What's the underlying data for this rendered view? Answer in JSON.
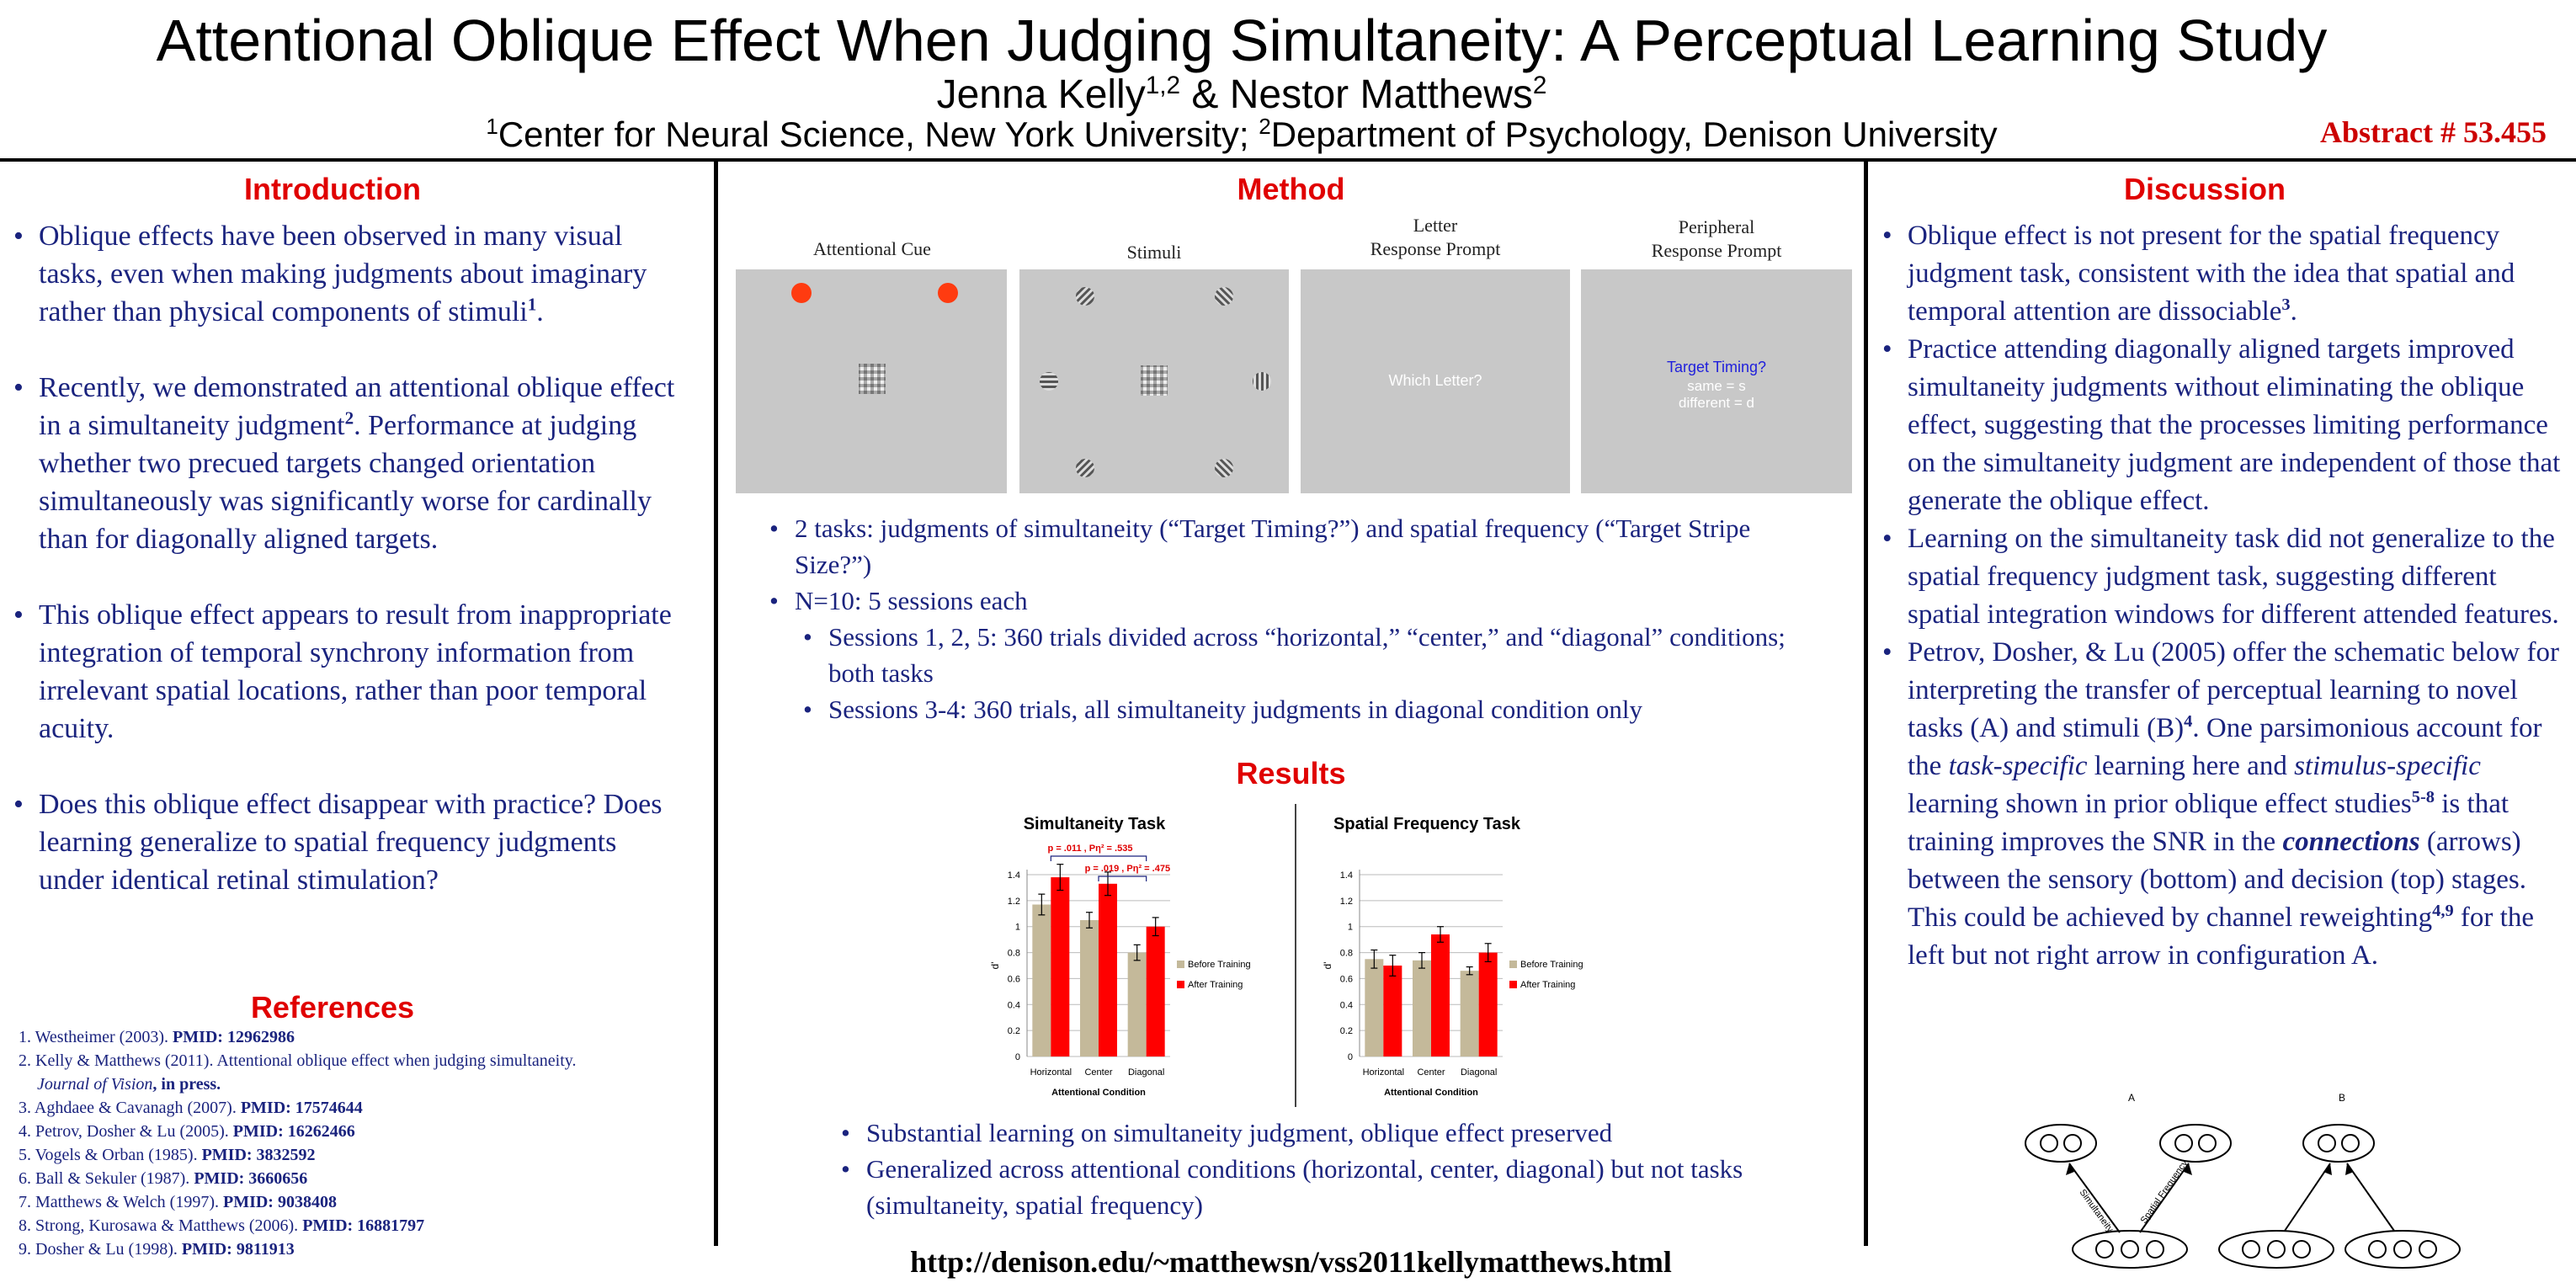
{
  "header": {
    "title": "Attentional Oblique Effect When Judging Simultaneity: A Perceptual Learning Study",
    "author1": "Jenna Kelly",
    "author1_sup": "1,2",
    "author_join": " & Nestor Matthews",
    "author2_sup": "2",
    "affil1_sup": "1",
    "affil1": "Center for Neural Science, New York University; ",
    "affil2_sup": "2",
    "affil2": "Department of Psychology, Denison University",
    "abstract": "Abstract # 53.455"
  },
  "intro": {
    "title": "Introduction",
    "items": [
      {
        "text": "Oblique effects have been observed in many visual tasks, even when making judgments about imaginary rather than physical components of stimuli",
        "sup": "1",
        "tail": "."
      },
      {
        "text": "Recently, we demonstrated an attentional oblique effect in a simultaneity judgment",
        "sup": "2",
        "tail": ".  Performance at judging whether two precued targets changed orientation simultaneously was significantly worse for cardinally than for diagonally aligned targets."
      },
      {
        "text": "This oblique effect appears to result from inappropriate integration of temporal synchrony information from irrelevant spatial locations, rather than poor temporal acuity.",
        "sup": "",
        "tail": ""
      },
      {
        "text": "Does this oblique effect disappear with practice? Does learning generalize to spatial frequency judgments under identical retinal stimulation?",
        "sup": "",
        "tail": ""
      }
    ]
  },
  "refs": {
    "title": "References",
    "items": [
      {
        "text": "1. Westheimer (2003). ",
        "pmid": "PMID: 12962986",
        "extra": ""
      },
      {
        "text": "2. Kelly & Matthews (2011). Attentional oblique effect when judging simultaneity. ",
        "pmid": "",
        "extra": "Journal of Vision",
        "tail": ", in press."
      },
      {
        "text": "3. Aghdaee & Cavanagh (2007). ",
        "pmid": "PMID: 17574644",
        "extra": ""
      },
      {
        "text": "4. Petrov, Dosher & Lu (2005). ",
        "pmid": "PMID: 16262466",
        "extra": ""
      },
      {
        "text": "5. Vogels & Orban (1985). ",
        "pmid": "PMID: 3832592",
        "extra": ""
      },
      {
        "text": "6. Ball & Sekuler (1987). ",
        "pmid": "PMID: 3660656",
        "extra": ""
      },
      {
        "text": "7. Matthews & Welch (1997). ",
        "pmid": "PMID: 9038408",
        "extra": ""
      },
      {
        "text": "8. Strong, Kurosawa & Matthews (2006). ",
        "pmid": "PMID: 16881797",
        "extra": ""
      },
      {
        "text": "9. Dosher & Lu (1998). ",
        "pmid": "PMID: 9811913",
        "extra": ""
      }
    ]
  },
  "method": {
    "title": "Method",
    "panels": [
      {
        "label": "Attentional Cue"
      },
      {
        "label": "Stimuli"
      },
      {
        "label": "Letter\nResponse Prompt",
        "screen_text": "Which Letter?"
      },
      {
        "label": "Peripheral\nResponse Prompt",
        "screen_text": "Target Timing?",
        "screen_sub1": "same = s",
        "screen_sub2": "different = d"
      }
    ],
    "bullets": [
      "2 tasks: judgments of simultaneity (“Target Timing?”) and spatial frequency (“Target Stripe Size?”)",
      "N=10:  5 sessions each"
    ],
    "sub_bullets": [
      "Sessions 1, 2, 5: 360 trials divided across “horizontal,” “center,” and “diagonal” conditions; both tasks",
      "Sessions 3-4: 360 trials, all simultaneity judgments in diagonal condition only"
    ]
  },
  "results": {
    "title": "Results",
    "bullets": [
      "Substantial learning on simultaneity judgment, oblique effect preserved",
      "Generalized across attentional conditions (horizontal, center, diagonal) but not tasks (simultaneity, spatial frequency)"
    ]
  },
  "chart_data": [
    {
      "type": "bar",
      "title": "Simultaneity Task",
      "xlabel": "Attentional Condition",
      "ylabel": "d'",
      "ylim": [
        0,
        1.4
      ],
      "yticks": [
        "0",
        "0.2",
        "0.4",
        "0.6",
        "0.8",
        "1",
        "1.2",
        "1.4"
      ],
      "categories": [
        "Horizontal",
        "Center",
        "Diagonal"
      ],
      "series": [
        {
          "name": "Before Training",
          "color": "#c4b99a",
          "values": [
            1.17,
            1.05,
            0.8
          ],
          "err": [
            0.08,
            0.06,
            0.06
          ]
        },
        {
          "name": "After Training",
          "color": "#ff0000",
          "values": [
            1.38,
            1.33,
            1.0
          ],
          "err": [
            0.1,
            0.09,
            0.07
          ]
        }
      ],
      "annotations": [
        "p = .011 , Pη² = .535",
        "p = .019 , Pη² = .475"
      ]
    },
    {
      "type": "bar",
      "title": "Spatial Frequency Task",
      "xlabel": "Attentional Condition",
      "ylabel": "d'",
      "ylim": [
        0,
        1.4
      ],
      "yticks": [
        "0",
        "0.2",
        "0.4",
        "0.6",
        "0.8",
        "1",
        "1.2",
        "1.4"
      ],
      "categories": [
        "Horizontal",
        "Center",
        "Diagonal"
      ],
      "series": [
        {
          "name": "Before Training",
          "color": "#c4b99a",
          "values": [
            0.75,
            0.74,
            0.66
          ],
          "err": [
            0.07,
            0.06,
            0.03
          ]
        },
        {
          "name": "After Training",
          "color": "#ff0000",
          "values": [
            0.7,
            0.94,
            0.8
          ],
          "err": [
            0.08,
            0.06,
            0.07
          ]
        }
      ]
    }
  ],
  "discussion": {
    "title": "Discussion",
    "item1": {
      "text": "Oblique effect is not present for the spatial frequency judgment task, consistent with the idea that spatial and temporal attention are dissociable",
      "sup": "3",
      "tail": "."
    },
    "item2": "Practice attending diagonally aligned targets improved simultaneity judgments without eliminating the oblique effect, suggesting that the processes limiting performance on the simultaneity judgment are independent of those that generate the oblique effect.",
    "item3": "Learning on the simultaneity task did not generalize to the spatial frequency judgment task, suggesting different spatial integration windows for different attended features.",
    "item4": {
      "a": "Petrov, Dosher, & Lu (2005) offer the schematic below for interpreting the transfer of perceptual learning to novel tasks (A) and stimuli (B)",
      "sup1": "4",
      "b": ". One parsimonious account for the ",
      "em1": "task-specific",
      "c": " learning here and ",
      "em2": "stimulus-specific",
      "d": " learning shown in prior oblique effect studies",
      "sup2": "5-8",
      "e": " is that training improves the SNR in the ",
      "strong": "connections",
      "f": " (arrows) between the sensory (bottom) and decision (top) stages. This could be achieved by channel reweighting",
      "sup3": "4,9",
      "g": " for the left but not right arrow in configuration A."
    },
    "schematic": {
      "label_a": "A",
      "label_b": "B",
      "arrow1": "Simultaneity",
      "arrow2": "Spatial Frequency"
    }
  },
  "footer": {
    "url": "http://denison.edu/~matthewsn/vss2011kellymatthews.html"
  }
}
